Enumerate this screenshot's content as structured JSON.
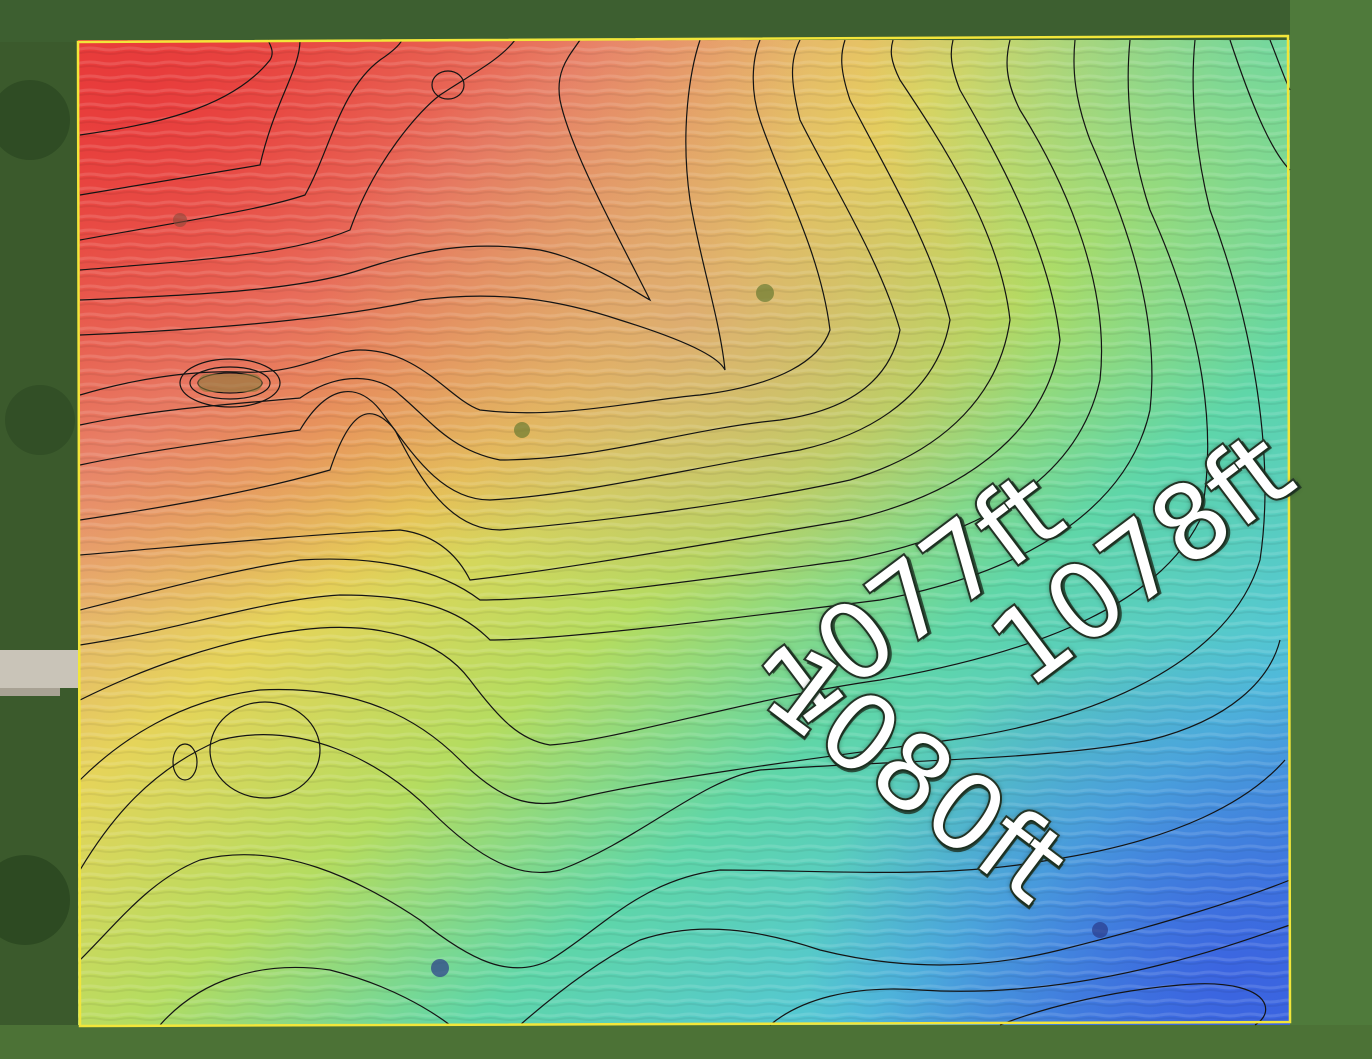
{
  "map": {
    "labels": {
      "label_a": "1077ft",
      "label_b": "1078ft",
      "label_c": "1080ft"
    },
    "colors": {
      "boundary": "#f2e63a",
      "contour": "#141414",
      "elevation_high": "#e8483a",
      "elevation_mid": "#e6d84a",
      "elevation_low": "#4aa0e0",
      "vegetation": "#3f6a34",
      "road": "#c9c4b8"
    }
  }
}
